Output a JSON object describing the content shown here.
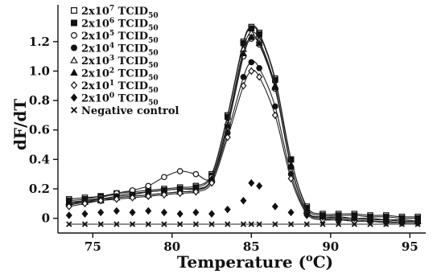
{
  "chart_data": {
    "type": "line",
    "title": "",
    "xlabel": {
      "main": "Temperature (",
      "sup": "o",
      "tail": "C)"
    },
    "ylabel": "dF/dT",
    "xlim": [
      72.8,
      96
    ],
    "ylim": [
      -0.1,
      1.45
    ],
    "x_ticks": [
      75,
      80,
      85,
      90,
      95
    ],
    "y_ticks": [
      0,
      0.2,
      0.4,
      0.6,
      0.8,
      1.0,
      1.2
    ],
    "y_tick_labels": [
      "0",
      "0.2",
      "0.4",
      "0.6",
      "0.8",
      "1.0",
      "1.2"
    ],
    "legend_position": "top-left",
    "x": [
      73.5,
      74.5,
      75.5,
      76.5,
      77.5,
      78.5,
      79.5,
      80.5,
      81.5,
      82.5,
      83.5,
      84.5,
      85.0,
      85.5,
      86.5,
      87.5,
      88.5,
      89.5,
      90.5,
      91.5,
      92.5,
      93.5,
      94.5,
      95.5
    ],
    "series": [
      {
        "base": "2x10",
        "exp": "7",
        "marker": "square-open",
        "values": [
          0.13,
          0.14,
          0.15,
          0.17,
          0.18,
          0.19,
          0.2,
          0.21,
          0.22,
          0.3,
          0.7,
          1.2,
          1.3,
          1.26,
          0.95,
          0.4,
          0.08,
          0.03,
          0.03,
          0.03,
          0.02,
          0.02,
          0.01,
          0.01
        ]
      },
      {
        "base": "2x10",
        "exp": "6",
        "marker": "square-filled",
        "values": [
          0.12,
          0.13,
          0.15,
          0.16,
          0.17,
          0.18,
          0.19,
          0.2,
          0.21,
          0.29,
          0.69,
          1.19,
          1.29,
          1.25,
          0.94,
          0.4,
          0.07,
          0.02,
          0.02,
          0.02,
          0.01,
          0.01,
          0.0,
          0.0
        ]
      },
      {
        "base": "2x10",
        "exp": "5",
        "marker": "circle-open",
        "values": [
          0.1,
          0.12,
          0.14,
          0.17,
          0.19,
          0.22,
          0.28,
          0.32,
          0.3,
          0.28,
          0.62,
          1.1,
          1.22,
          1.18,
          0.88,
          0.35,
          0.05,
          0.01,
          0.0,
          0.0,
          -0.01,
          -0.01,
          -0.02,
          -0.02
        ]
      },
      {
        "base": "2x10",
        "exp": "4",
        "marker": "circle-filled",
        "values": [
          0.09,
          0.11,
          0.13,
          0.15,
          0.16,
          0.18,
          0.19,
          0.2,
          0.2,
          0.26,
          0.58,
          0.96,
          1.06,
          1.02,
          0.76,
          0.3,
          0.04,
          0.0,
          -0.01,
          -0.01,
          -0.02,
          -0.02,
          -0.03,
          -0.03
        ]
      },
      {
        "base": "2x10",
        "exp": "3",
        "marker": "triangle-open",
        "values": [
          0.1,
          0.11,
          0.12,
          0.14,
          0.15,
          0.16,
          0.17,
          0.18,
          0.19,
          0.27,
          0.65,
          1.15,
          1.26,
          1.21,
          0.9,
          0.36,
          0.05,
          0.01,
          0.01,
          0.0,
          0.0,
          -0.01,
          -0.01,
          -0.02
        ]
      },
      {
        "base": "2x10",
        "exp": "2",
        "marker": "triangle-filled",
        "values": [
          0.11,
          0.12,
          0.13,
          0.14,
          0.15,
          0.16,
          0.17,
          0.18,
          0.19,
          0.26,
          0.63,
          1.12,
          1.23,
          1.19,
          0.89,
          0.35,
          0.05,
          0.01,
          0.0,
          0.0,
          -0.01,
          -0.01,
          -0.02,
          -0.02
        ]
      },
      {
        "base": "2x10",
        "exp": "1",
        "marker": "diamond-open",
        "values": [
          0.08,
          0.1,
          0.12,
          0.13,
          0.14,
          0.15,
          0.16,
          0.17,
          0.18,
          0.24,
          0.55,
          0.9,
          1.0,
          0.96,
          0.7,
          0.27,
          0.03,
          -0.01,
          -0.01,
          -0.02,
          -0.02,
          -0.03,
          -0.03,
          -0.03
        ]
      },
      {
        "base": "2x10",
        "exp": "0",
        "marker": "diamond-filled",
        "values": [
          0.02,
          0.03,
          0.04,
          0.05,
          0.04,
          0.05,
          0.04,
          0.03,
          0.04,
          0.03,
          0.06,
          0.12,
          0.24,
          0.22,
          0.08,
          0.04,
          0.02,
          0.01,
          0.0,
          0.0,
          -0.01,
          -0.01,
          -0.02,
          -0.02
        ]
      },
      {
        "label": "Negative control",
        "marker": "x",
        "values": [
          -0.04,
          -0.04,
          -0.04,
          -0.04,
          -0.04,
          -0.04,
          -0.04,
          -0.04,
          -0.04,
          -0.04,
          -0.04,
          -0.04,
          -0.04,
          -0.04,
          -0.04,
          -0.04,
          -0.04,
          -0.04,
          -0.04,
          -0.04,
          -0.04,
          -0.04,
          -0.04,
          -0.04
        ]
      }
    ]
  }
}
